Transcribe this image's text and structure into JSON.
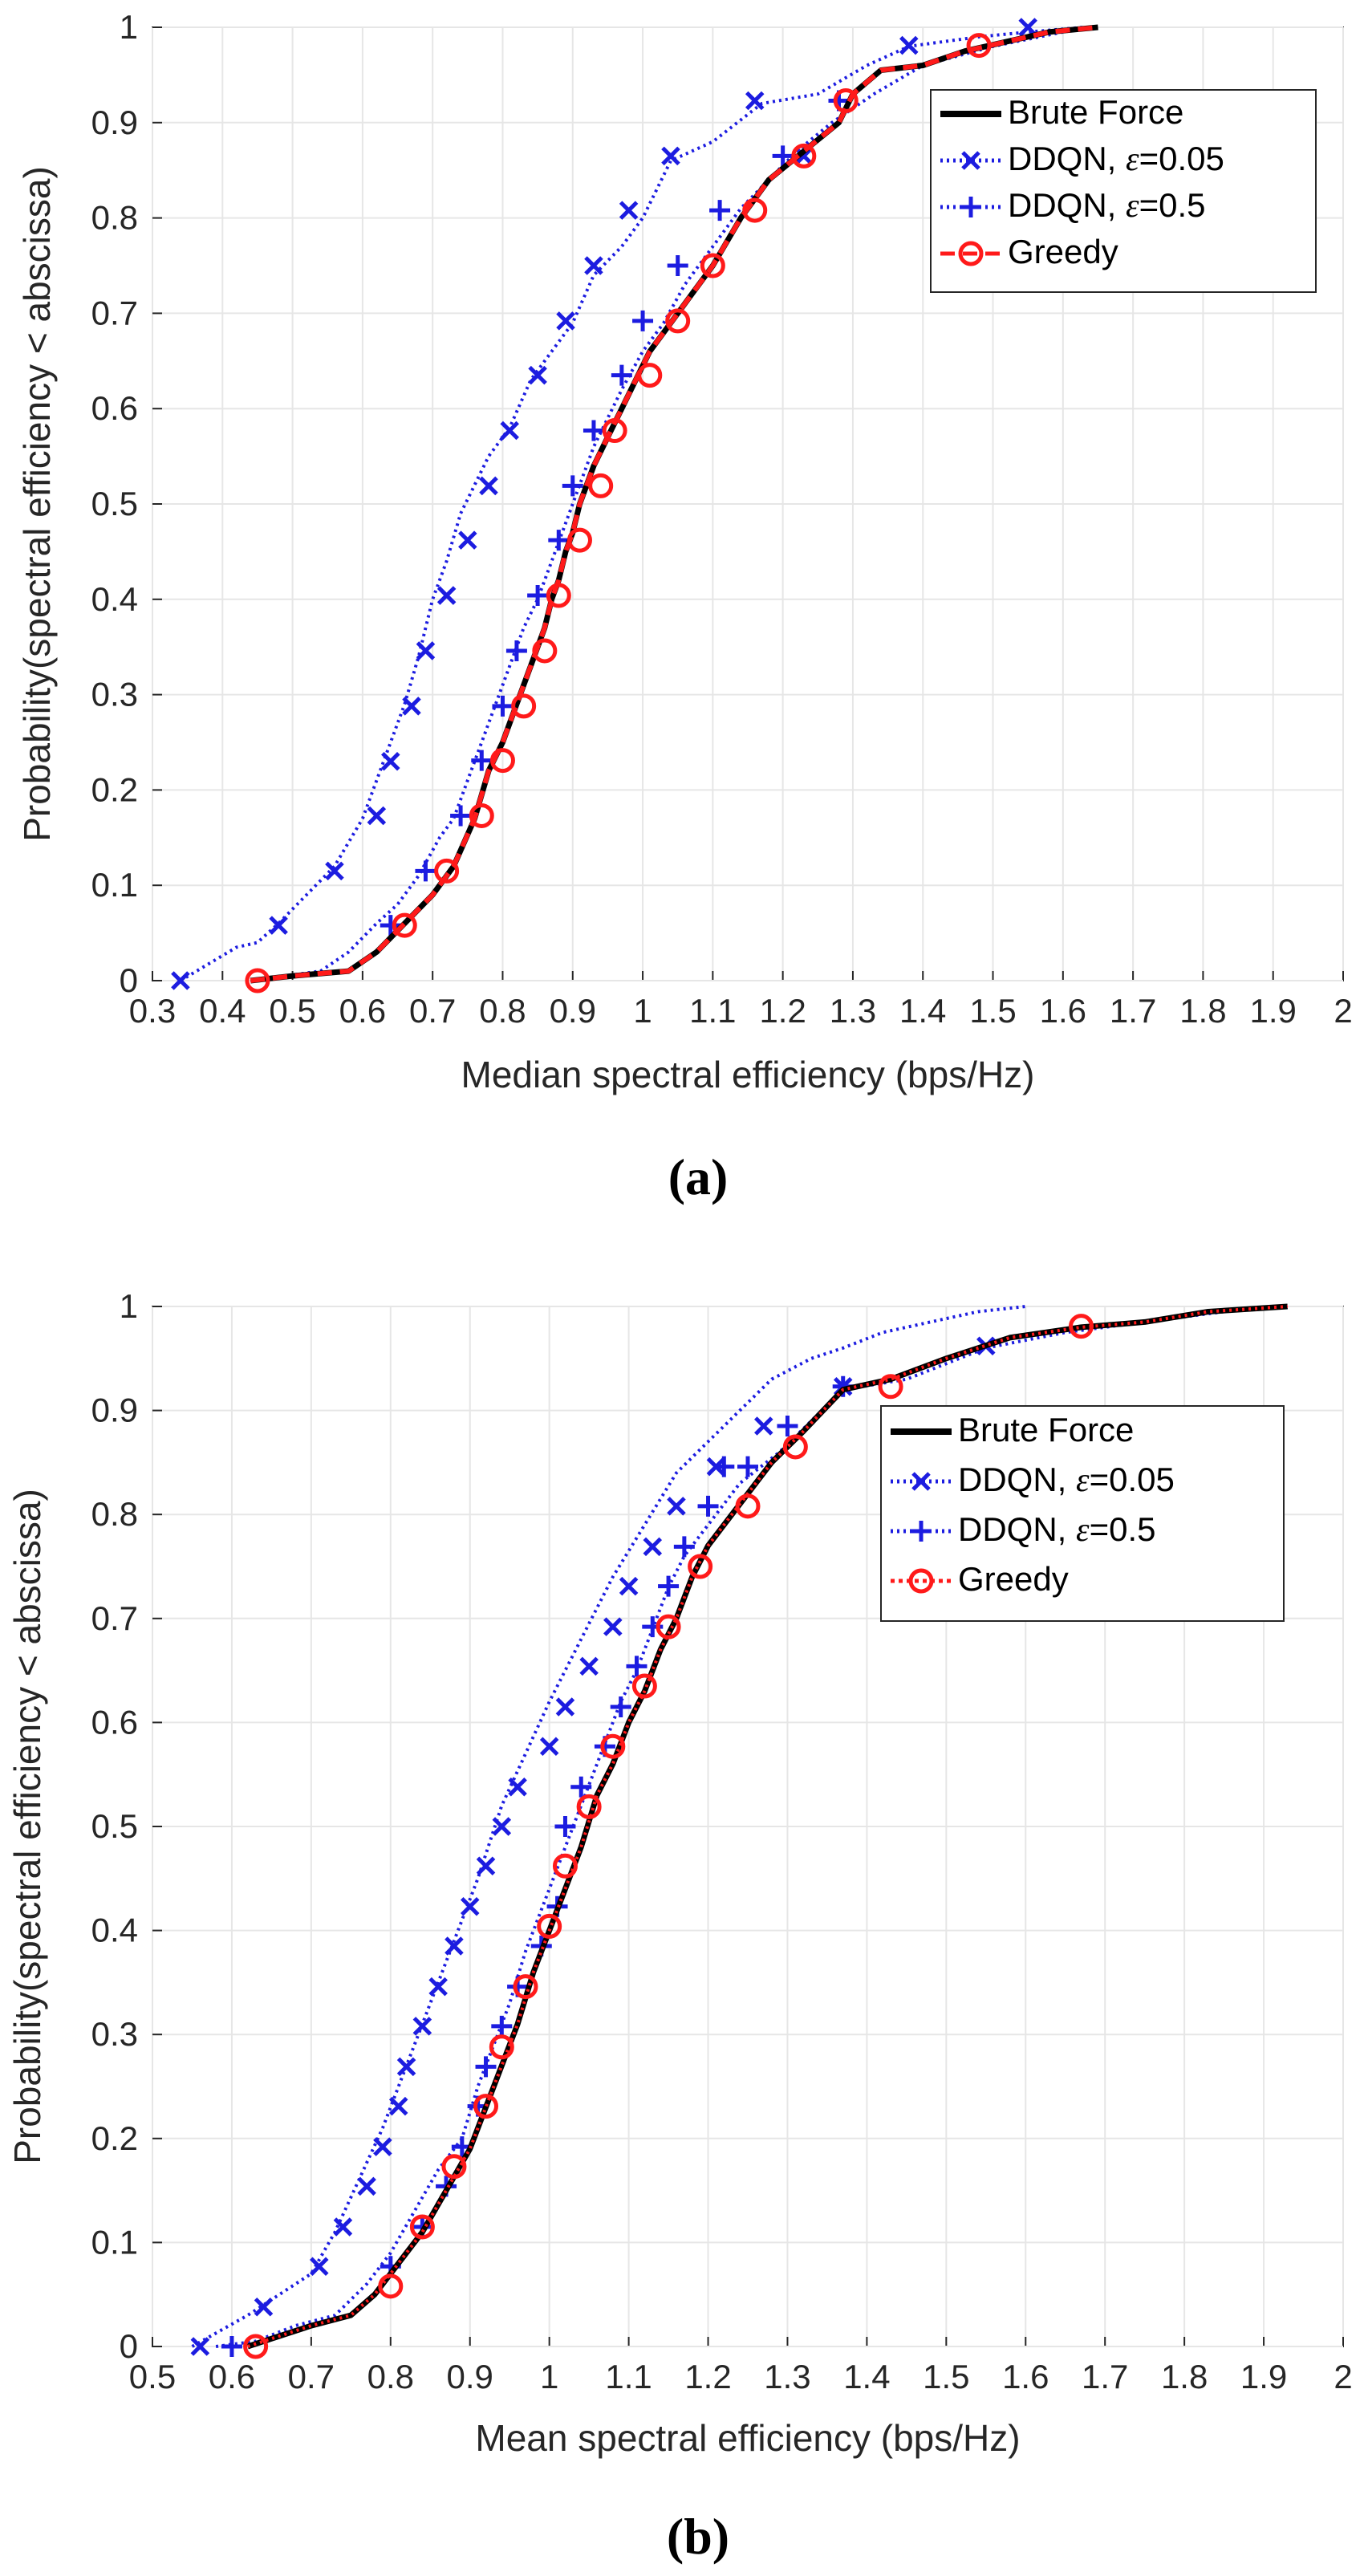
{
  "colors": {
    "brute": "#000000",
    "ddqn005": "#1c1ce0",
    "ddqn05": "#1c1ce0",
    "greedy": "#ff1a1a",
    "grid": "#e6e6e6",
    "axis": "#262626"
  },
  "chart_data": [
    {
      "type": "line",
      "caption": "(a)",
      "xlabel": "Median spectral efficiency (bps/Hz)",
      "ylabel": "Probability(spectral efficiency < abscissa)",
      "xlim": [
        0.3,
        2.0
      ],
      "ylim": [
        0,
        1
      ],
      "xticks": [
        0.3,
        0.4,
        0.5,
        0.6,
        0.7,
        0.8,
        0.9,
        1,
        1.1,
        1.2,
        1.3,
        1.4,
        1.5,
        1.6,
        1.7,
        1.8,
        1.9,
        2
      ],
      "xtick_labels": [
        "0.3",
        "0.4",
        "0.5",
        "0.6",
        "0.7",
        "0.8",
        "0.9",
        "1",
        "1.1",
        "1.2",
        "1.3",
        "1.4",
        "1.5",
        "1.6",
        "1.7",
        "1.8",
        "1.9",
        "2"
      ],
      "yticks": [
        0,
        0.1,
        0.2,
        0.3,
        0.4,
        0.5,
        0.6,
        0.7,
        0.8,
        0.9,
        1
      ],
      "ytick_labels": [
        "0",
        "0.1",
        "0.2",
        "0.3",
        "0.4",
        "0.5",
        "0.6",
        "0.7",
        "0.8",
        "0.9",
        "1"
      ],
      "grid": true,
      "legend": {
        "position": "top-right",
        "entries": [
          {
            "key": "brute",
            "name": "Brute Force",
            "eps": ""
          },
          {
            "key": "ddqn005",
            "name": "DDQN,  ",
            "eps": "=0.05"
          },
          {
            "key": "ddqn05",
            "name": "DDQN,  ",
            "eps": "=0.5"
          },
          {
            "key": "greedy",
            "name": "Greedy",
            "eps": ""
          }
        ]
      },
      "series": [
        {
          "key": "ddqn005",
          "name": "DDQN, ε=0.05",
          "marker": "x",
          "style": "dotted",
          "x": [
            0.34,
            0.42,
            0.45,
            0.48,
            0.52,
            0.56,
            0.6,
            0.63,
            0.66,
            0.68,
            0.7,
            0.72,
            0.74,
            0.76,
            0.78,
            0.81,
            0.84,
            0.87,
            0.9,
            0.93,
            0.97,
            1.0,
            1.04,
            1.1,
            1.17,
            1.25,
            1.32,
            1.38,
            1.48,
            1.55,
            1.63
          ],
          "y": [
            0.0,
            0.035,
            0.04,
            0.06,
            0.09,
            0.12,
            0.17,
            0.23,
            0.29,
            0.34,
            0.4,
            0.44,
            0.49,
            0.52,
            0.55,
            0.58,
            0.63,
            0.66,
            0.69,
            0.74,
            0.77,
            0.8,
            0.86,
            0.88,
            0.92,
            0.93,
            0.96,
            0.98,
            0.99,
            0.995,
            1.0
          ],
          "marker_x": [
            0.34,
            0.48,
            0.56,
            0.62,
            0.64,
            0.67,
            0.69,
            0.72,
            0.75,
            0.78,
            0.81,
            0.85,
            0.89,
            0.93,
            0.98,
            1.04,
            1.16,
            1.23,
            1.38,
            1.55
          ],
          "marker_y": [
            0.0,
            0.058,
            0.115,
            0.173,
            0.23,
            0.288,
            0.346,
            0.404,
            0.462,
            0.519,
            0.577,
            0.635,
            0.692,
            0.75,
            0.808,
            0.865,
            0.923,
            0.865,
            0.981,
            1.0
          ]
        },
        {
          "key": "ddqn05",
          "name": "DDQN, ε=0.5",
          "marker": "+",
          "style": "dotted",
          "x": [
            0.44,
            0.54,
            0.58,
            0.62,
            0.65,
            0.68,
            0.71,
            0.73,
            0.75,
            0.77,
            0.79,
            0.81,
            0.83,
            0.85,
            0.87,
            0.89,
            0.91,
            0.93,
            0.95,
            0.97,
            1.0,
            1.03,
            1.06,
            1.1,
            1.14,
            1.18,
            1.22,
            1.27,
            1.33,
            1.4,
            1.5,
            1.6,
            1.65
          ],
          "y": [
            0.0,
            0.01,
            0.03,
            0.06,
            0.08,
            0.11,
            0.15,
            0.17,
            0.21,
            0.25,
            0.29,
            0.33,
            0.37,
            0.4,
            0.44,
            0.48,
            0.52,
            0.56,
            0.59,
            0.62,
            0.66,
            0.69,
            0.73,
            0.77,
            0.81,
            0.84,
            0.87,
            0.9,
            0.93,
            0.96,
            0.98,
            0.995,
            1.0
          ],
          "marker_x": [
            0.64,
            0.69,
            0.74,
            0.77,
            0.8,
            0.82,
            0.85,
            0.88,
            0.9,
            0.93,
            0.97,
            1.0,
            1.05,
            1.11,
            1.2,
            1.28
          ],
          "marker_y": [
            0.058,
            0.115,
            0.173,
            0.231,
            0.288,
            0.346,
            0.404,
            0.462,
            0.519,
            0.577,
            0.635,
            0.692,
            0.75,
            0.808,
            0.865,
            0.923
          ]
        },
        {
          "key": "brute",
          "name": "Brute Force",
          "marker": "none",
          "style": "solid",
          "x": [
            0.44,
            0.5,
            0.58,
            0.62,
            0.66,
            0.7,
            0.73,
            0.76,
            0.78,
            0.8,
            0.82,
            0.84,
            0.86,
            0.87,
            0.88,
            0.89,
            0.9,
            0.91,
            0.93,
            0.95,
            0.97,
            0.99,
            1.01,
            1.04,
            1.07,
            1.1,
            1.14,
            1.18,
            1.23,
            1.28,
            1.3,
            1.34,
            1.4,
            1.46,
            1.52,
            1.58,
            1.65
          ],
          "y": [
            0.0,
            0.005,
            0.01,
            0.03,
            0.06,
            0.09,
            0.12,
            0.17,
            0.22,
            0.25,
            0.29,
            0.33,
            0.37,
            0.4,
            0.42,
            0.45,
            0.47,
            0.5,
            0.54,
            0.57,
            0.6,
            0.63,
            0.66,
            0.69,
            0.72,
            0.75,
            0.8,
            0.84,
            0.87,
            0.9,
            0.93,
            0.955,
            0.96,
            0.975,
            0.985,
            0.995,
            1.0
          ]
        },
        {
          "key": "greedy",
          "name": "Greedy",
          "marker": "o",
          "style": "dashed",
          "x": [
            0.44,
            0.5,
            0.58,
            0.62,
            0.66,
            0.7,
            0.73,
            0.76,
            0.78,
            0.8,
            0.82,
            0.84,
            0.86,
            0.87,
            0.88,
            0.89,
            0.9,
            0.91,
            0.93,
            0.95,
            0.97,
            0.99,
            1.01,
            1.04,
            1.07,
            1.1,
            1.14,
            1.18,
            1.23,
            1.28,
            1.3,
            1.34,
            1.4,
            1.46,
            1.52,
            1.58,
            1.65
          ],
          "y": [
            0.0,
            0.005,
            0.01,
            0.03,
            0.06,
            0.09,
            0.12,
            0.17,
            0.22,
            0.25,
            0.29,
            0.33,
            0.37,
            0.4,
            0.42,
            0.45,
            0.47,
            0.5,
            0.54,
            0.57,
            0.6,
            0.63,
            0.66,
            0.69,
            0.72,
            0.75,
            0.8,
            0.84,
            0.87,
            0.9,
            0.93,
            0.955,
            0.96,
            0.975,
            0.985,
            0.995,
            1.0
          ],
          "marker_x": [
            0.45,
            0.66,
            0.72,
            0.77,
            0.8,
            0.83,
            0.86,
            0.88,
            0.91,
            0.94,
            0.96,
            1.01,
            1.05,
            1.1,
            1.16,
            1.23,
            1.29,
            1.48
          ],
          "marker_y": [
            0.0,
            0.058,
            0.115,
            0.173,
            0.231,
            0.288,
            0.346,
            0.404,
            0.462,
            0.519,
            0.577,
            0.635,
            0.692,
            0.75,
            0.808,
            0.865,
            0.923,
            0.981
          ]
        }
      ]
    },
    {
      "type": "line",
      "caption": "(b)",
      "xlabel": "Mean spectral efficiency (bps/Hz)",
      "ylabel": "Probability(spectral efficiency < abscissa)",
      "xlim": [
        0.5,
        2.0
      ],
      "ylim": [
        0,
        1
      ],
      "xticks": [
        0.5,
        0.6,
        0.7,
        0.8,
        0.9,
        1,
        1.1,
        1.2,
        1.3,
        1.4,
        1.5,
        1.6,
        1.7,
        1.8,
        1.9,
        2
      ],
      "xtick_labels": [
        "0.5",
        "0.6",
        "0.7",
        "0.8",
        "0.9",
        "1",
        "1.1",
        "1.2",
        "1.3",
        "1.4",
        "1.5",
        "1.6",
        "1.7",
        "1.8",
        "1.9",
        "2"
      ],
      "yticks": [
        0,
        0.1,
        0.2,
        0.3,
        0.4,
        0.5,
        0.6,
        0.7,
        0.8,
        0.9,
        1
      ],
      "ytick_labels": [
        "0",
        "0.1",
        "0.2",
        "0.3",
        "0.4",
        "0.5",
        "0.6",
        "0.7",
        "0.8",
        "0.9",
        "1"
      ],
      "grid": true,
      "legend": {
        "position": "center-right",
        "entries": [
          {
            "key": "brute",
            "name": "Brute Force",
            "eps": ""
          },
          {
            "key": "ddqn005",
            "name": "DDQN,  ",
            "eps": "=0.05"
          },
          {
            "key": "ddqn05",
            "name": "DDQN,  ",
            "eps": "=0.5"
          },
          {
            "key": "greedy",
            "name": "Greedy",
            "eps": ""
          }
        ]
      },
      "series": [
        {
          "key": "ddqn005",
          "name": "DDQN, ε=0.05",
          "marker": "x",
          "style": "dotted",
          "x": [
            0.55,
            0.62,
            0.66,
            0.7,
            0.73,
            0.76,
            0.79,
            0.82,
            0.85,
            0.88,
            0.91,
            0.94,
            0.97,
            1.0,
            1.04,
            1.08,
            1.12,
            1.16,
            1.2,
            1.24,
            1.28,
            1.33,
            1.37,
            1.42,
            1.48,
            1.54,
            1.6
          ],
          "y": [
            0.0,
            0.03,
            0.05,
            0.07,
            0.11,
            0.16,
            0.21,
            0.27,
            0.33,
            0.39,
            0.45,
            0.52,
            0.57,
            0.62,
            0.68,
            0.74,
            0.79,
            0.84,
            0.87,
            0.9,
            0.93,
            0.95,
            0.96,
            0.975,
            0.985,
            0.995,
            1.0
          ],
          "marker_x": [
            0.56,
            0.64,
            0.71,
            0.74,
            0.77,
            0.79,
            0.81,
            0.82,
            0.84,
            0.86,
            0.88,
            0.9,
            0.92,
            0.94,
            0.96,
            1.0,
            1.02,
            1.05,
            1.08,
            1.1,
            1.13,
            1.16,
            1.21,
            1.27,
            1.37,
            1.55
          ],
          "marker_y": [
            0.0,
            0.038,
            0.077,
            0.115,
            0.154,
            0.192,
            0.231,
            0.269,
            0.308,
            0.346,
            0.385,
            0.423,
            0.462,
            0.5,
            0.538,
            0.577,
            0.615,
            0.654,
            0.692,
            0.731,
            0.769,
            0.808,
            0.846,
            0.885,
            0.923,
            0.962
          ]
        },
        {
          "key": "ddqn05",
          "name": "DDQN, ε=0.5",
          "marker": "+",
          "style": "dotted",
          "x": [
            0.58,
            0.63,
            0.68,
            0.73,
            0.77,
            0.8,
            0.83,
            0.86,
            0.89,
            0.91,
            0.93,
            0.95,
            0.97,
            0.99,
            1.01,
            1.03,
            1.05,
            1.07,
            1.09,
            1.11,
            1.13,
            1.15,
            1.17,
            1.2,
            1.24,
            1.29,
            1.33,
            1.37,
            1.45,
            1.55,
            1.65,
            1.75,
            1.85,
            1.93
          ],
          "y": [
            0.0,
            0.005,
            0.02,
            0.03,
            0.06,
            0.09,
            0.13,
            0.17,
            0.2,
            0.25,
            0.29,
            0.33,
            0.38,
            0.42,
            0.46,
            0.5,
            0.54,
            0.58,
            0.62,
            0.65,
            0.69,
            0.73,
            0.76,
            0.79,
            0.83,
            0.86,
            0.89,
            0.92,
            0.93,
            0.96,
            0.975,
            0.985,
            0.995,
            1.0
          ],
          "marker_x": [
            0.6,
            0.8,
            0.84,
            0.87,
            0.89,
            0.91,
            0.92,
            0.94,
            0.96,
            0.99,
            1.01,
            1.02,
            1.04,
            1.07,
            1.09,
            1.11,
            1.13,
            1.15,
            1.17,
            1.2,
            1.22,
            1.25,
            1.3,
            1.37
          ],
          "marker_y": [
            0.0,
            0.077,
            0.115,
            0.154,
            0.192,
            0.231,
            0.269,
            0.308,
            0.346,
            0.385,
            0.423,
            0.5,
            0.538,
            0.577,
            0.615,
            0.654,
            0.692,
            0.731,
            0.769,
            0.808,
            0.846,
            0.846,
            0.885,
            0.923
          ]
        },
        {
          "key": "brute",
          "name": "Brute Force",
          "marker": "none",
          "style": "solid",
          "x": [
            0.62,
            0.66,
            0.7,
            0.75,
            0.78,
            0.81,
            0.84,
            0.87,
            0.9,
            0.92,
            0.94,
            0.96,
            0.98,
            1.0,
            1.02,
            1.04,
            1.06,
            1.08,
            1.1,
            1.12,
            1.14,
            1.16,
            1.18,
            1.2,
            1.24,
            1.28,
            1.32,
            1.37,
            1.43,
            1.5,
            1.58,
            1.67,
            1.75,
            1.83,
            1.93
          ],
          "y": [
            0.0,
            0.01,
            0.02,
            0.03,
            0.05,
            0.08,
            0.11,
            0.15,
            0.19,
            0.23,
            0.27,
            0.31,
            0.36,
            0.4,
            0.44,
            0.48,
            0.53,
            0.56,
            0.6,
            0.63,
            0.67,
            0.7,
            0.74,
            0.77,
            0.81,
            0.85,
            0.88,
            0.92,
            0.93,
            0.95,
            0.97,
            0.98,
            0.985,
            0.995,
            1.0
          ]
        },
        {
          "key": "greedy",
          "name": "Greedy",
          "marker": "o",
          "style": "dotted",
          "x": [
            0.62,
            0.66,
            0.7,
            0.75,
            0.78,
            0.81,
            0.84,
            0.87,
            0.9,
            0.92,
            0.94,
            0.96,
            0.98,
            1.0,
            1.02,
            1.04,
            1.06,
            1.08,
            1.1,
            1.12,
            1.14,
            1.16,
            1.18,
            1.2,
            1.24,
            1.28,
            1.32,
            1.37,
            1.43,
            1.5,
            1.58,
            1.67,
            1.75,
            1.83,
            1.93
          ],
          "y": [
            0.0,
            0.01,
            0.02,
            0.03,
            0.05,
            0.08,
            0.11,
            0.15,
            0.19,
            0.23,
            0.27,
            0.31,
            0.36,
            0.4,
            0.44,
            0.48,
            0.53,
            0.56,
            0.6,
            0.63,
            0.67,
            0.7,
            0.74,
            0.77,
            0.81,
            0.85,
            0.88,
            0.92,
            0.93,
            0.95,
            0.97,
            0.98,
            0.985,
            0.995,
            1.0
          ],
          "marker_x": [
            0.63,
            0.8,
            0.84,
            0.88,
            0.92,
            0.94,
            0.97,
            1.0,
            1.02,
            1.05,
            1.08,
            1.12,
            1.15,
            1.19,
            1.25,
            1.31,
            1.43,
            1.67
          ],
          "marker_y": [
            0.0,
            0.058,
            0.115,
            0.173,
            0.231,
            0.288,
            0.346,
            0.404,
            0.462,
            0.519,
            0.577,
            0.635,
            0.692,
            0.75,
            0.808,
            0.865,
            0.923,
            0.981
          ]
        }
      ]
    }
  ]
}
